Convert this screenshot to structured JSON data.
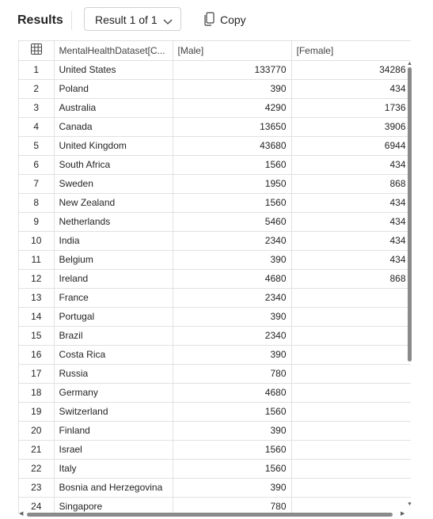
{
  "header": {
    "title": "Results",
    "result_selector": "Result 1 of 1",
    "copy_label": "Copy"
  },
  "table": {
    "columns": [
      "MentalHealthDataset[C...",
      "[Male]",
      "[Female]"
    ],
    "rows": [
      {
        "n": "1",
        "country": "United States",
        "male": "133770",
        "female": "34286"
      },
      {
        "n": "2",
        "country": "Poland",
        "male": "390",
        "female": "434"
      },
      {
        "n": "3",
        "country": "Australia",
        "male": "4290",
        "female": "1736"
      },
      {
        "n": "4",
        "country": "Canada",
        "male": "13650",
        "female": "3906"
      },
      {
        "n": "5",
        "country": "United Kingdom",
        "male": "43680",
        "female": "6944"
      },
      {
        "n": "6",
        "country": "South Africa",
        "male": "1560",
        "female": "434"
      },
      {
        "n": "7",
        "country": "Sweden",
        "male": "1950",
        "female": "868"
      },
      {
        "n": "8",
        "country": "New Zealand",
        "male": "1560",
        "female": "434"
      },
      {
        "n": "9",
        "country": "Netherlands",
        "male": "5460",
        "female": "434"
      },
      {
        "n": "10",
        "country": "India",
        "male": "2340",
        "female": "434"
      },
      {
        "n": "11",
        "country": "Belgium",
        "male": "390",
        "female": "434"
      },
      {
        "n": "12",
        "country": "Ireland",
        "male": "4680",
        "female": "868"
      },
      {
        "n": "13",
        "country": "France",
        "male": "2340",
        "female": ""
      },
      {
        "n": "14",
        "country": "Portugal",
        "male": "390",
        "female": ""
      },
      {
        "n": "15",
        "country": "Brazil",
        "male": "2340",
        "female": ""
      },
      {
        "n": "16",
        "country": "Costa Rica",
        "male": "390",
        "female": ""
      },
      {
        "n": "17",
        "country": "Russia",
        "male": "780",
        "female": ""
      },
      {
        "n": "18",
        "country": "Germany",
        "male": "4680",
        "female": ""
      },
      {
        "n": "19",
        "country": "Switzerland",
        "male": "1560",
        "female": ""
      },
      {
        "n": "20",
        "country": "Finland",
        "male": "390",
        "female": ""
      },
      {
        "n": "21",
        "country": "Israel",
        "male": "1560",
        "female": ""
      },
      {
        "n": "22",
        "country": "Italy",
        "male": "1560",
        "female": ""
      },
      {
        "n": "23",
        "country": "Bosnia and Herzegovina",
        "male": "390",
        "female": ""
      },
      {
        "n": "24",
        "country": "Singapore",
        "male": "780",
        "female": ""
      }
    ]
  },
  "icons": {
    "dropdown": "chevron-down-icon",
    "copy": "copy-icon",
    "grid": "table-grid-icon"
  }
}
